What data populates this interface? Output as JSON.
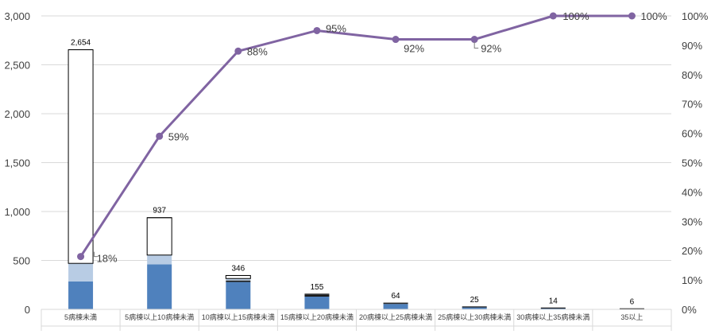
{
  "chart_data": {
    "type": "bar",
    "stacked": true,
    "combo_with_line": true,
    "categories": [
      "5病棟未満",
      "5病棟以上10病棟未満",
      "10病棟以上15病棟未満",
      "15病棟以上20病棟未満",
      "20病棟以上25病棟未満",
      "25病棟以上30病棟未満",
      "30病棟以上35病棟未満",
      "35以上"
    ],
    "series": [
      {
        "values": [
          285,
          460,
          280,
          130,
          55,
          20,
          10,
          3
        ],
        "color": "#4f81bd"
      },
      {
        "values": [
          0,
          0,
          15,
          20,
          5,
          3,
          2,
          1
        ],
        "color": "#1a1a1a"
      },
      {
        "values": [
          185,
          95,
          20,
          5,
          4,
          2,
          2,
          2
        ],
        "color": "#b8cce4"
      },
      {
        "values": [
          2184,
          382,
          31,
          0,
          0,
          0,
          0,
          0
        ],
        "color": "#ffffff"
      }
    ],
    "totals": [
      2654,
      937,
      346,
      155,
      64,
      25,
      14,
      6
    ],
    "total_labels": [
      "2,654",
      "937",
      "346",
      "155",
      "64",
      "25",
      "14",
      "6"
    ],
    "line": {
      "values": [
        18,
        59,
        88,
        95,
        92,
        92,
        100,
        100
      ],
      "labels": [
        "18%",
        "59%",
        "88%",
        "95%",
        "92%",
        "92%",
        "100%",
        "100%"
      ],
      "color": "#8064a2"
    },
    "y_left": {
      "min": 0,
      "max": 3000,
      "step": 500,
      "ticks": [
        "0",
        "500",
        "1,000",
        "1,500",
        "2,000",
        "2,500",
        "3,000"
      ]
    },
    "y_right": {
      "min": 0,
      "max": 100,
      "step": 10,
      "ticks": [
        "0%",
        "10%",
        "20%",
        "30%",
        "40%",
        "50%",
        "60%",
        "70%",
        "80%",
        "90%",
        "100%"
      ]
    },
    "grid": true,
    "legend": "none"
  }
}
